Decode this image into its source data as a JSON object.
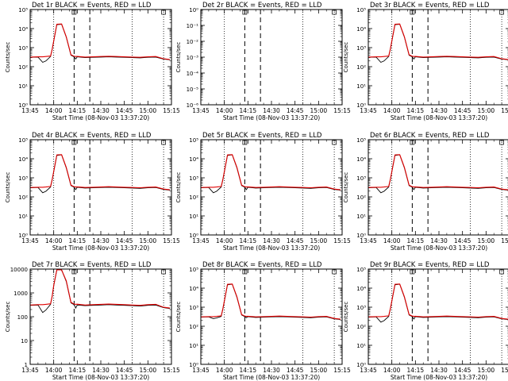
{
  "colors": {
    "events": "#000000",
    "lld": "#e00000",
    "frame": "#000000",
    "background": "#ffffff"
  },
  "x_tick_labels": [
    "13:45",
    "14:00",
    "14:15",
    "14:30",
    "14:45",
    "15:00",
    "15:15"
  ],
  "xlabel": "Start Time (08-Nov-03 13:37:20)",
  "ylabel": "Counts/sec",
  "time_x_minutes_after_13_45": [
    0,
    5,
    8,
    10,
    13,
    14,
    15,
    17,
    20,
    23,
    26,
    28,
    29,
    30,
    35,
    40,
    45,
    50,
    55,
    60,
    65,
    70,
    75,
    80,
    85,
    89
  ],
  "event_markers": [
    {
      "time": "14:13",
      "style": "dashed"
    },
    {
      "time": "14:23",
      "style": "dashed"
    },
    {
      "time": "14:00",
      "style": "dotted"
    },
    {
      "time": "14:50",
      "style": "dotted"
    },
    {
      "time": "15:10",
      "style": "dotted"
    }
  ],
  "chart_data": [
    {
      "type": "line",
      "title": "Det 1r BLACK = Events, RED = LLD",
      "ylabel": "Counts/sec",
      "ylim": [
        1,
        100000
      ],
      "yscale": "log",
      "y_tick_labels": [
        "10⁰",
        "10¹",
        "10²",
        "10³",
        "10⁴",
        "10⁵"
      ],
      "series": [
        {
          "name": "Events",
          "values": [
            310,
            320,
            170,
            200,
            340,
            800,
            2200,
            16000,
            17000,
            3500,
            400,
            330,
            250,
            330,
            300,
            310,
            320,
            330,
            320,
            310,
            300,
            290,
            310,
            320,
            250,
            230
          ]
        },
        {
          "name": "LLD",
          "values": [
            320,
            330,
            330,
            340,
            360,
            820,
            2300,
            17000,
            17500,
            3700,
            420,
            350,
            340,
            345,
            320,
            330,
            340,
            350,
            340,
            330,
            320,
            310,
            330,
            340,
            260,
            240
          ]
        }
      ]
    },
    {
      "type": "line",
      "title": "Det 2r BLACK = Events, RED = LLD",
      "ylabel": "Counts/sec",
      "ylim": [
        1e-06,
        1
      ],
      "yscale": "log",
      "y_tick_labels": [
        "10⁻⁶",
        "10⁻⁵",
        "10⁻⁴",
        "10⁻³",
        "10⁻²",
        "10⁻¹",
        "10⁰"
      ],
      "series": [
        {
          "name": "Events",
          "values": []
        },
        {
          "name": "LLD",
          "values": []
        }
      ]
    },
    {
      "type": "line",
      "title": "Det 3r BLACK = Events, RED = LLD",
      "ylabel": "Counts/sec",
      "ylim": [
        1,
        100000
      ],
      "yscale": "log",
      "y_tick_labels": [
        "10⁰",
        "10¹",
        "10²",
        "10³",
        "10⁴",
        "10⁵"
      ],
      "series": [
        {
          "name": "Events",
          "values": [
            310,
            320,
            170,
            200,
            340,
            800,
            2200,
            16000,
            17000,
            3500,
            400,
            330,
            250,
            330,
            300,
            310,
            320,
            330,
            320,
            310,
            300,
            290,
            310,
            320,
            250,
            230
          ]
        },
        {
          "name": "LLD",
          "values": [
            320,
            330,
            330,
            340,
            360,
            820,
            2300,
            17000,
            17500,
            3700,
            420,
            350,
            340,
            345,
            320,
            330,
            340,
            350,
            340,
            330,
            320,
            310,
            330,
            340,
            260,
            240
          ]
        }
      ]
    },
    {
      "type": "line",
      "title": "Det 4r BLACK = Events, RED = LLD",
      "ylabel": "Counts/sec",
      "ylim": [
        1,
        100000
      ],
      "yscale": "log",
      "y_tick_labels": [
        "10⁰",
        "10¹",
        "10²",
        "10³",
        "10⁴",
        "10⁵"
      ],
      "series": [
        {
          "name": "Events",
          "values": [
            300,
            310,
            165,
            195,
            330,
            780,
            2100,
            15000,
            16000,
            3300,
            390,
            320,
            240,
            320,
            290,
            300,
            310,
            320,
            310,
            300,
            290,
            280,
            300,
            310,
            245,
            225
          ]
        },
        {
          "name": "LLD",
          "values": [
            310,
            320,
            320,
            330,
            350,
            800,
            2200,
            16000,
            16500,
            3500,
            410,
            340,
            330,
            335,
            310,
            320,
            330,
            340,
            330,
            320,
            310,
            300,
            320,
            330,
            255,
            235
          ]
        }
      ]
    },
    {
      "type": "line",
      "title": "Det 5r BLACK = Events, RED = LLD",
      "ylabel": "Counts/sec",
      "ylim": [
        1,
        100000
      ],
      "yscale": "log",
      "y_tick_labels": [
        "10⁰",
        "10¹",
        "10²",
        "10³",
        "10⁴",
        "10⁵"
      ],
      "series": [
        {
          "name": "Events",
          "values": [
            300,
            310,
            165,
            195,
            330,
            780,
            2100,
            15000,
            16000,
            3300,
            390,
            320,
            240,
            320,
            290,
            300,
            310,
            320,
            310,
            300,
            290,
            280,
            300,
            310,
            245,
            225
          ]
        },
        {
          "name": "LLD",
          "values": [
            310,
            320,
            320,
            330,
            350,
            800,
            2200,
            16000,
            16500,
            3500,
            410,
            340,
            330,
            335,
            310,
            320,
            330,
            340,
            330,
            320,
            310,
            300,
            320,
            330,
            255,
            235
          ]
        }
      ]
    },
    {
      "type": "line",
      "title": "Det 6r BLACK = Events, RED = LLD",
      "ylabel": "Counts/sec",
      "ylim": [
        1,
        100000
      ],
      "yscale": "log",
      "y_tick_labels": [
        "10⁰",
        "10¹",
        "10²",
        "10³",
        "10⁴",
        "10⁵"
      ],
      "series": [
        {
          "name": "Events",
          "values": [
            300,
            310,
            165,
            195,
            330,
            780,
            2100,
            15000,
            16000,
            3300,
            390,
            320,
            240,
            320,
            290,
            300,
            310,
            320,
            310,
            300,
            290,
            280,
            300,
            310,
            245,
            225
          ]
        },
        {
          "name": "LLD",
          "values": [
            310,
            320,
            320,
            330,
            350,
            800,
            2200,
            16000,
            16500,
            3500,
            410,
            340,
            330,
            335,
            310,
            320,
            330,
            340,
            330,
            320,
            310,
            300,
            320,
            330,
            255,
            235
          ]
        }
      ]
    },
    {
      "type": "line",
      "title": "Det 7r BLACK = Events, RED = LLD",
      "ylabel": "Counts/sec",
      "ylim": [
        1,
        10000
      ],
      "yscale": "log",
      "y_tick_labels": [
        "1",
        "10",
        "100",
        "1000",
        "10000"
      ],
      "series": [
        {
          "name": "Events",
          "values": [
            300,
            310,
            150,
            190,
            330,
            700,
            2000,
            9500,
            10000,
            3000,
            380,
            320,
            230,
            310,
            290,
            300,
            310,
            320,
            310,
            300,
            290,
            280,
            300,
            310,
            240,
            220
          ]
        },
        {
          "name": "LLD",
          "values": [
            310,
            320,
            320,
            330,
            350,
            720,
            2100,
            10000,
            10000,
            3200,
            400,
            340,
            330,
            335,
            310,
            320,
            330,
            340,
            330,
            320,
            310,
            300,
            320,
            330,
            250,
            230
          ]
        }
      ]
    },
    {
      "type": "line",
      "title": "Det 8r BLACK = Events, RED = LLD",
      "ylabel": "Counts/sec",
      "ylim": [
        1,
        100000
      ],
      "yscale": "log",
      "y_tick_labels": [
        "10⁰",
        "10¹",
        "10²",
        "10³",
        "10⁴",
        "10⁵"
      ],
      "series": [
        {
          "name": "Events",
          "values": [
            300,
            310,
            250,
            270,
            330,
            780,
            2100,
            15000,
            16000,
            3300,
            390,
            320,
            280,
            320,
            290,
            300,
            310,
            320,
            310,
            300,
            290,
            280,
            300,
            310,
            245,
            225
          ]
        },
        {
          "name": "LLD",
          "values": [
            310,
            320,
            320,
            330,
            350,
            800,
            2200,
            16000,
            16500,
            3500,
            410,
            340,
            330,
            335,
            310,
            320,
            330,
            340,
            330,
            320,
            310,
            300,
            320,
            330,
            255,
            235
          ]
        }
      ]
    },
    {
      "type": "line",
      "title": "Det 9r BLACK = Events, RED = LLD",
      "ylabel": "Counts/sec",
      "ylim": [
        1,
        100000
      ],
      "yscale": "log",
      "y_tick_labels": [
        "10⁰",
        "10¹",
        "10²",
        "10³",
        "10⁴",
        "10⁵"
      ],
      "series": [
        {
          "name": "Events",
          "values": [
            300,
            310,
            165,
            195,
            330,
            780,
            2100,
            15000,
            16000,
            3300,
            390,
            320,
            240,
            320,
            290,
            300,
            310,
            320,
            310,
            300,
            290,
            280,
            300,
            310,
            245,
            225
          ]
        },
        {
          "name": "LLD",
          "values": [
            310,
            320,
            320,
            330,
            350,
            800,
            2200,
            16000,
            16500,
            3500,
            410,
            340,
            330,
            335,
            310,
            320,
            330,
            340,
            330,
            320,
            310,
            300,
            320,
            330,
            255,
            235
          ]
        }
      ]
    }
  ]
}
